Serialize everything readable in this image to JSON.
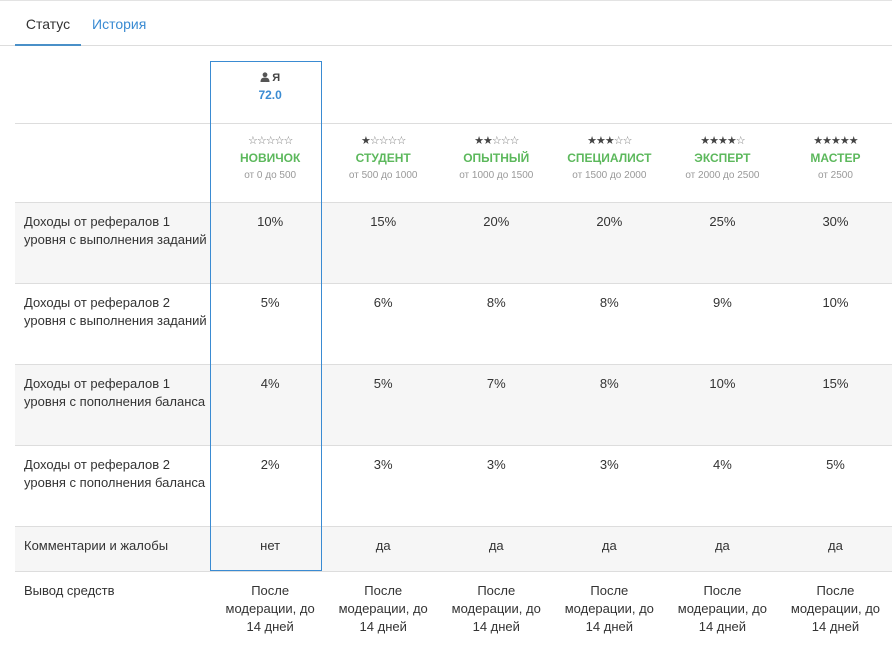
{
  "tabs": {
    "status": "Статус",
    "history": "История"
  },
  "me": {
    "name": "Я",
    "value": "72.0"
  },
  "levels": [
    {
      "name": "НОВИЧОК",
      "stars": 0,
      "range": "от 0 до 500"
    },
    {
      "name": "СТУДЕНТ",
      "stars": 1,
      "range": "от 500 до 1000"
    },
    {
      "name": "ОПЫТНЫЙ",
      "stars": 2,
      "range": "от 1000 до 1500"
    },
    {
      "name": "СПЕЦИАЛИСТ",
      "stars": 3,
      "range": "от 1500 до 2000"
    },
    {
      "name": "ЭКСПЕРТ",
      "stars": 4,
      "range": "от 2000 до 2500"
    },
    {
      "name": "МАСТЕР",
      "stars": 5,
      "range": "от 2500"
    }
  ],
  "rows": [
    {
      "label": "Доходы от рефералов 1 уровня с выполнения заданий",
      "values": [
        "10%",
        "15%",
        "20%",
        "20%",
        "25%",
        "30%"
      ]
    },
    {
      "label": "Доходы от рефералов 2 уровня с выполнения заданий",
      "values": [
        "5%",
        "6%",
        "8%",
        "8%",
        "9%",
        "10%"
      ]
    },
    {
      "label": "Доходы от рефералов 1 уровня с пополнения баланса",
      "values": [
        "4%",
        "5%",
        "7%",
        "8%",
        "10%",
        "15%"
      ]
    },
    {
      "label": "Доходы от рефералов 2 уровня с пополнения баланса",
      "values": [
        "2%",
        "3%",
        "3%",
        "3%",
        "4%",
        "5%"
      ]
    },
    {
      "label": "Комментарии и жалобы",
      "values": [
        "нет",
        "да",
        "да",
        "да",
        "да",
        "да"
      ]
    },
    {
      "label": "Вывод средств",
      "values": [
        "После модерации, до 14 дней",
        "После модерации, до 14 дней",
        "После модерации, до 14 дней",
        "После модерации, до 14 дней",
        "После модерации, до 14 дней",
        "После модерации, до 14 дней"
      ]
    }
  ]
}
